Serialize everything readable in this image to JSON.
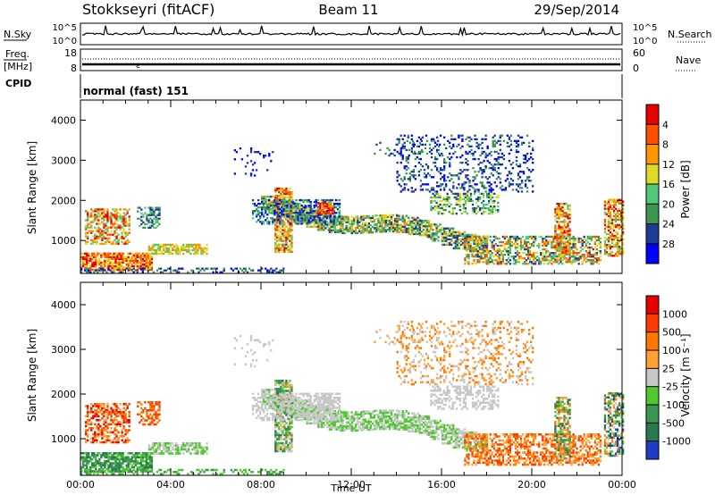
{
  "header": {
    "station": "Stokkseyri (fitACF)",
    "beam": "Beam 11",
    "date": "29/Sep/2014"
  },
  "top_panels": {
    "nsky_label": "N.Sky",
    "nsky_ticks": [
      "10^5",
      "10^0"
    ],
    "nsearch_label": "N.Search",
    "nsearch_ticks": [
      "10^5",
      "10^0"
    ],
    "freq_label_1": "Freq.",
    "freq_label_2": "[MHz]",
    "freq_ticks": [
      "18",
      "8"
    ],
    "nave_label": "Nave",
    "nave_ticks": [
      "60",
      "0"
    ],
    "cpid_label": "CPID",
    "cpid_value": "normal (fast) 151"
  },
  "chart_data": [
    {
      "type": "heatmap",
      "title": "Power",
      "ylabel": "Slant Range [km]",
      "xlabel": "Time UT",
      "ylim": [
        180,
        4500
      ],
      "xlim": [
        0,
        24
      ],
      "y_ticks": [
        "1000",
        "2000",
        "3000",
        "4000"
      ],
      "colorbar": {
        "label": "Power [dB]",
        "ticks": [
          "4",
          "8",
          "12",
          "16",
          "20",
          "24",
          "28"
        ],
        "colors": [
          "#0000ff",
          "#1e3c96",
          "#3c9650",
          "#50c878",
          "#dcdc28",
          "#ff9600",
          "#ff5000",
          "#e60000"
        ]
      }
    },
    {
      "type": "heatmap",
      "title": "Velocity",
      "ylabel": "Slant Range [km]",
      "xlabel": "Time UT",
      "ylim": [
        180,
        4500
      ],
      "xlim": [
        0,
        24
      ],
      "y_ticks": [
        "1000",
        "2000",
        "3000",
        "4000"
      ],
      "x_ticks": [
        "00:00",
        "04:00",
        "08:00",
        "12:00",
        "16:00",
        "20:00",
        "00:00"
      ],
      "colorbar": {
        "label": "Velocity [m s⁻¹]",
        "ticks": [
          "1000",
          "500",
          "100",
          "25",
          "-25",
          "-100",
          "-500",
          "-1000"
        ],
        "colors": [
          "#1e3cc8",
          "#287850",
          "#3c9650",
          "#50c830",
          "#c8c8c8",
          "#ffa032",
          "#ff7800",
          "#ff3c00",
          "#e60000"
        ]
      }
    }
  ],
  "x_axis": {
    "label": "Time UT",
    "ticks": [
      "00:00",
      "04:00",
      "08:00",
      "12:00",
      "16:00",
      "20:00",
      "00:00"
    ]
  }
}
